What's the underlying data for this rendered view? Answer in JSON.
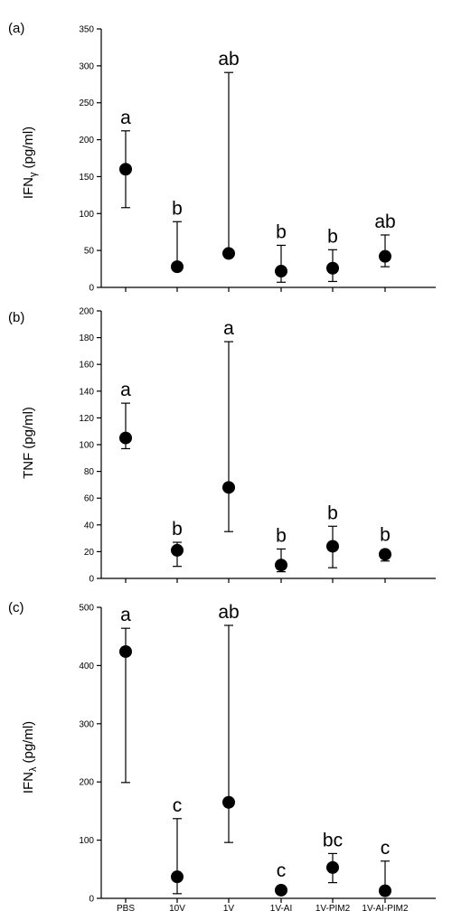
{
  "chart_data": [
    {
      "type": "scatter",
      "panel_label": "(a)",
      "ylabel": "IFN",
      "ylabel_subscript": "γ",
      "ylabel_unit": "(pg/ml)",
      "ylim": [
        0,
        350
      ],
      "yticks": [
        0,
        50,
        100,
        150,
        200,
        250,
        300,
        350
      ],
      "categories": [
        "PBS",
        "10V",
        "1V",
        "1V-AI",
        "1V-PIM2",
        "1V-AI-PIM2"
      ],
      "show_category_labels": false,
      "values": [
        160,
        28,
        46,
        22,
        26,
        42
      ],
      "error_low": [
        108,
        null,
        null,
        7,
        8,
        28
      ],
      "error_high": [
        212,
        89,
        291,
        57,
        51,
        71
      ],
      "sig_labels": [
        "a",
        "b",
        "ab",
        "b",
        "b",
        "ab"
      ]
    },
    {
      "type": "scatter",
      "panel_label": "(b)",
      "ylabel": "TNF",
      "ylabel_subscript": "",
      "ylabel_unit": "(pg/ml)",
      "ylim": [
        0,
        200
      ],
      "yticks": [
        0,
        20,
        40,
        60,
        80,
        100,
        120,
        140,
        160,
        180,
        200
      ],
      "categories": [
        "PBS",
        "10V",
        "1V",
        "1V-AI",
        "1V-PIM2",
        "1V-AI-PIM2"
      ],
      "show_category_labels": false,
      "values": [
        105,
        21,
        68,
        10,
        24,
        18
      ],
      "error_low": [
        97,
        9,
        35,
        5,
        8,
        13
      ],
      "error_high": [
        131,
        27,
        177,
        22,
        39,
        null
      ],
      "sig_labels": [
        "a",
        "b",
        "a",
        "b",
        "b",
        "b"
      ]
    },
    {
      "type": "scatter",
      "panel_label": "(c)",
      "ylabel": "IFN",
      "ylabel_subscript": "λ",
      "ylabel_unit": "(pg/ml)",
      "ylim": [
        0,
        500
      ],
      "yticks": [
        0,
        100,
        200,
        300,
        400,
        500
      ],
      "categories": [
        "PBS",
        "10V",
        "1V",
        "1V-AI",
        "1V-PIM2",
        "1V-AI-PIM2"
      ],
      "show_category_labels": true,
      "values": [
        424,
        37,
        165,
        14,
        53,
        13
      ],
      "error_low": [
        199,
        8,
        96,
        null,
        27,
        null
      ],
      "error_high": [
        464,
        137,
        469,
        null,
        77,
        64
      ],
      "sig_labels": [
        "a",
        "c",
        "ab",
        "c",
        "bc",
        "c"
      ]
    }
  ]
}
